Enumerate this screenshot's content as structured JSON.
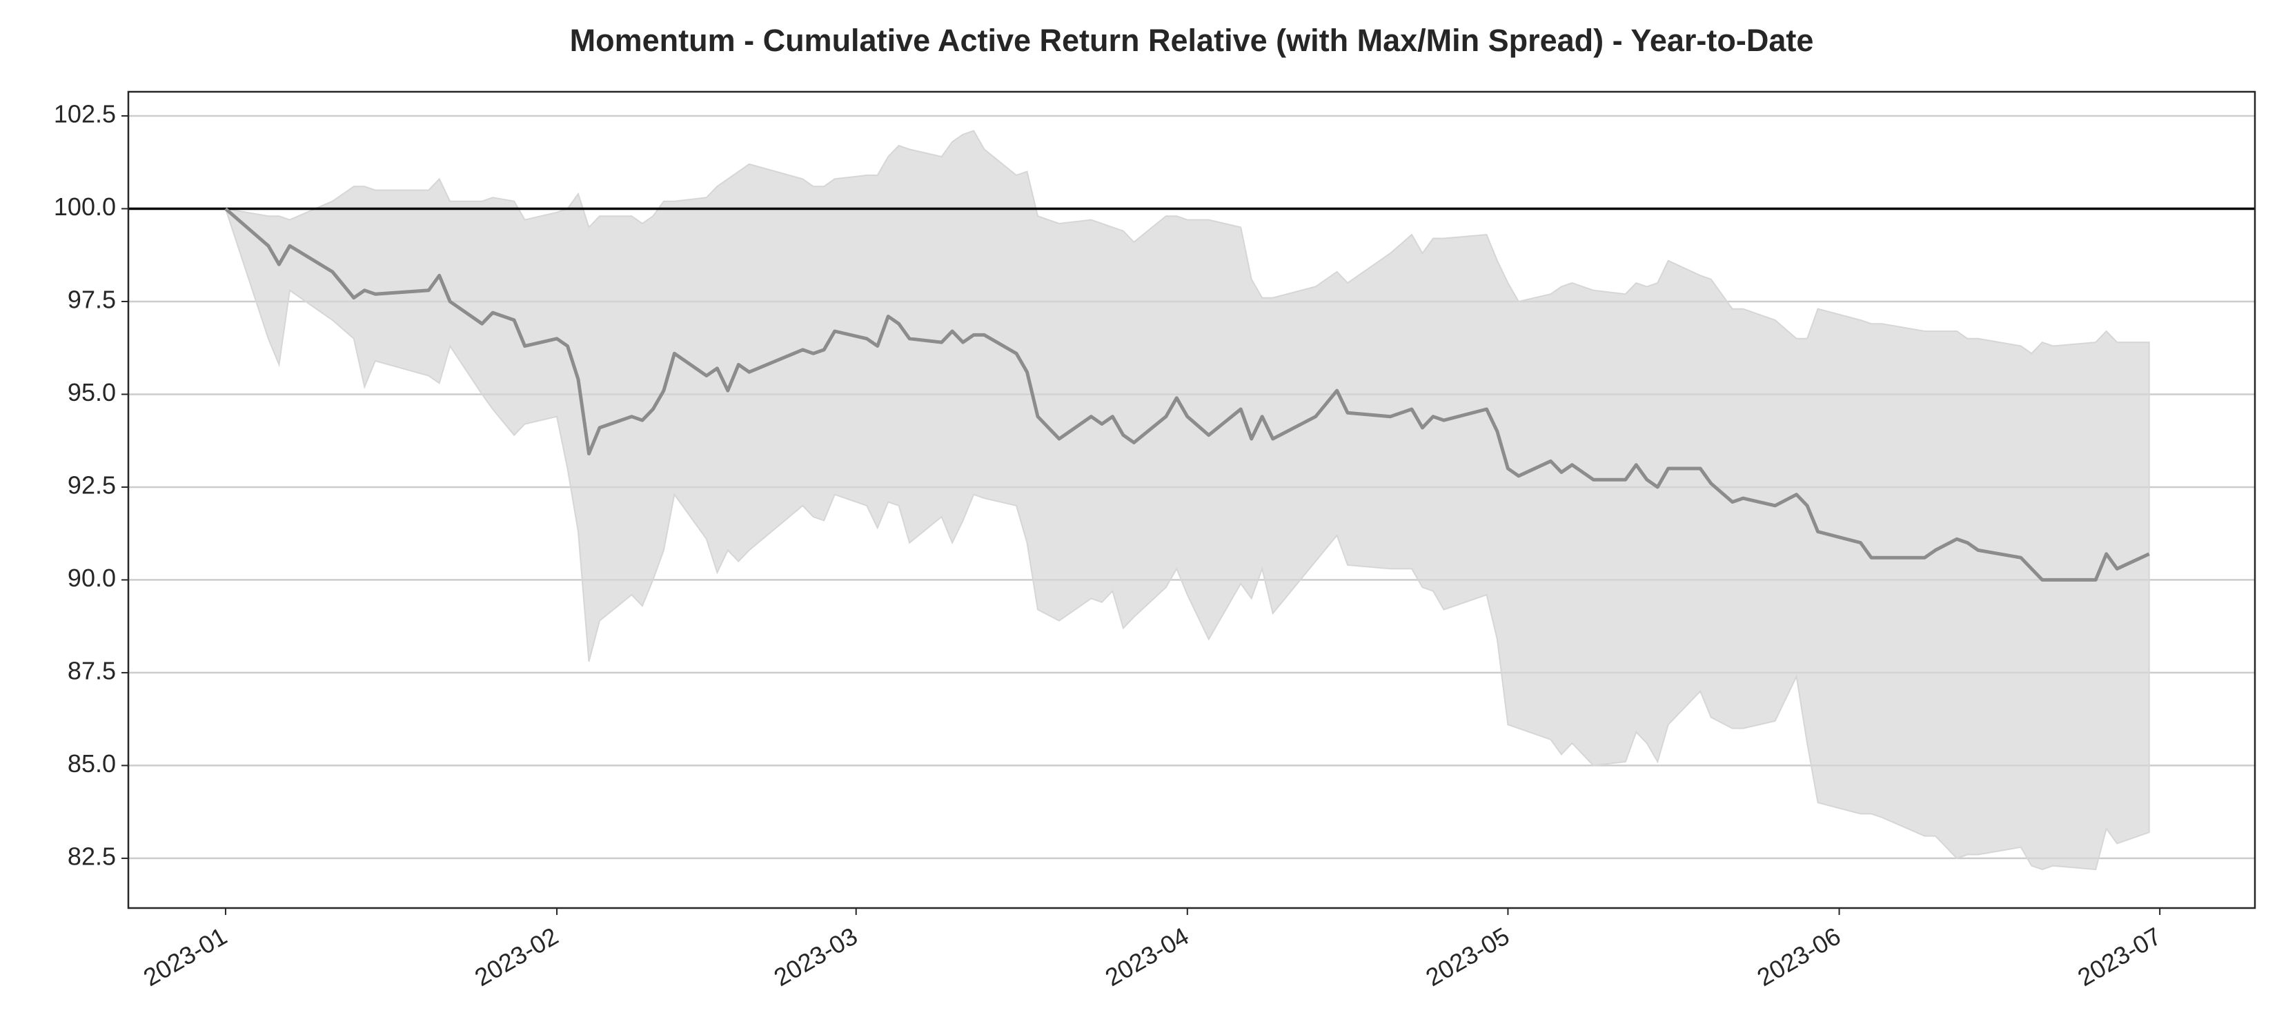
{
  "chart_data": {
    "type": "line",
    "title": "Momentum - Cumulative Active Return Relative (with Max/Min Spread) - Year-to-Date",
    "x": [
      0,
      4,
      5,
      6,
      10,
      12,
      13,
      14,
      19,
      20,
      21,
      24,
      25,
      27,
      28,
      31,
      32,
      33,
      34,
      35,
      38,
      39,
      40,
      41,
      42,
      45,
      46,
      47,
      48,
      49,
      54,
      55,
      56,
      57,
      60,
      61,
      62,
      63,
      64,
      67,
      68,
      69,
      70,
      71,
      74,
      75,
      76,
      78,
      81,
      82,
      83,
      84,
      85,
      88,
      89,
      90,
      92,
      95,
      96,
      97,
      98,
      102,
      104,
      105,
      109,
      111,
      112,
      113,
      114,
      118,
      119,
      120,
      121,
      124,
      125,
      126,
      128,
      131,
      132,
      133,
      134,
      135,
      138,
      139,
      141,
      142,
      145,
      147,
      148,
      149,
      153,
      154,
      155,
      159,
      160,
      162,
      163,
      164,
      168,
      169,
      170,
      171,
      175,
      176,
      177,
      180
    ],
    "series": [
      {
        "color": "#8c8c8c",
        "values": [
          100,
          99.0,
          98.5,
          99.0,
          98.3,
          97.6,
          97.8,
          97.7,
          97.8,
          98.2,
          97.5,
          96.9,
          97.2,
          97.0,
          96.3,
          96.5,
          96.3,
          95.4,
          93.4,
          94.1,
          94.4,
          94.3,
          94.6,
          95.1,
          96.1,
          95.5,
          95.7,
          95.1,
          95.8,
          95.6,
          96.2,
          96.1,
          96.2,
          96.7,
          96.5,
          96.3,
          97.1,
          96.9,
          96.5,
          96.4,
          96.7,
          96.4,
          96.6,
          96.6,
          96.1,
          95.6,
          94.4,
          93.8,
          94.4,
          94.2,
          94.4,
          93.9,
          93.7,
          94.4,
          94.9,
          94.4,
          93.9,
          94.6,
          93.8,
          94.4,
          93.8,
          94.4,
          95.1,
          94.5,
          94.4,
          94.6,
          94.1,
          94.4,
          94.3,
          94.6,
          94.0,
          93.0,
          92.8,
          93.2,
          92.9,
          93.1,
          92.7,
          92.7,
          93.1,
          92.7,
          92.5,
          93.0,
          93.0,
          92.6,
          92.1,
          92.2,
          92.0,
          92.3,
          92.0,
          91.3,
          91.0,
          90.6,
          90.6,
          90.6,
          90.8,
          91.1,
          91.0,
          90.8,
          90.6,
          90.3,
          90.0,
          90.0,
          90.0,
          90.7,
          90.3,
          90.7
        ]
      }
    ],
    "band": {
      "color": "#d6d6d6",
      "upper": [
        100,
        99.8,
        99.8,
        99.7,
        100.2,
        100.6,
        100.6,
        100.5,
        100.5,
        100.8,
        100.2,
        100.2,
        100.3,
        100.2,
        99.7,
        99.9,
        100.0,
        100.4,
        99.5,
        99.8,
        99.8,
        99.6,
        99.8,
        100.2,
        100.2,
        100.3,
        100.6,
        100.8,
        101.0,
        101.2,
        100.8,
        100.6,
        100.6,
        100.8,
        100.9,
        100.9,
        101.4,
        101.7,
        101.6,
        101.4,
        101.8,
        102.0,
        102.1,
        101.6,
        100.9,
        101.0,
        99.8,
        99.6,
        99.7,
        99.6,
        99.5,
        99.4,
        99.1,
        99.8,
        99.8,
        99.7,
        99.7,
        99.5,
        98.1,
        97.6,
        97.6,
        97.9,
        98.3,
        98.0,
        98.8,
        99.3,
        98.8,
        99.2,
        99.2,
        99.3,
        98.6,
        98.0,
        97.5,
        97.7,
        97.9,
        98.0,
        97.8,
        97.7,
        98.0,
        97.9,
        98.0,
        98.6,
        98.2,
        98.1,
        97.3,
        97.3,
        97.0,
        96.5,
        96.5,
        97.3,
        97.0,
        96.9,
        96.9,
        96.7,
        96.7,
        96.7,
        96.5,
        96.5,
        96.3,
        96.1,
        96.4,
        96.3,
        96.4,
        96.7,
        96.4,
        96.4
      ],
      "lower": [
        100,
        96.5,
        95.8,
        97.8,
        97.0,
        96.5,
        95.2,
        95.9,
        95.5,
        95.3,
        96.3,
        95.0,
        94.6,
        93.9,
        94.2,
        94.4,
        93.0,
        91.3,
        87.8,
        88.9,
        89.6,
        89.3,
        90.0,
        90.8,
        92.3,
        91.1,
        90.2,
        90.8,
        90.5,
        90.8,
        92.0,
        91.7,
        91.6,
        92.3,
        92.0,
        91.4,
        92.1,
        92.0,
        91.0,
        91.7,
        91.0,
        91.6,
        92.3,
        92.2,
        92.0,
        91.0,
        89.2,
        88.9,
        89.5,
        89.4,
        89.7,
        88.7,
        89.0,
        89.8,
        90.3,
        89.6,
        88.4,
        89.9,
        89.5,
        90.3,
        89.1,
        90.5,
        91.2,
        90.4,
        90.3,
        90.3,
        89.8,
        89.7,
        89.2,
        89.6,
        88.4,
        86.1,
        86.0,
        85.7,
        85.3,
        85.6,
        85.0,
        85.1,
        85.9,
        85.6,
        85.1,
        86.1,
        87.0,
        86.3,
        86.0,
        86.0,
        86.2,
        87.4,
        85.6,
        84.0,
        83.7,
        83.7,
        83.6,
        83.1,
        83.1,
        82.5,
        82.6,
        82.6,
        82.8,
        82.3,
        82.2,
        82.3,
        82.2,
        83.3,
        82.9,
        83.2
      ]
    },
    "hline": 100,
    "hline_color": "#000000",
    "xlim": [
      -9.1,
      189.9
    ],
    "xticks": [
      {
        "value": 0,
        "label": "2023-01"
      },
      {
        "value": 31,
        "label": "2023-02"
      },
      {
        "value": 59,
        "label": "2023-03"
      },
      {
        "value": 90,
        "label": "2023-04"
      },
      {
        "value": 120,
        "label": "2023-05"
      },
      {
        "value": 151,
        "label": "2023-06"
      },
      {
        "value": 181,
        "label": "2023-07"
      }
    ],
    "ylim": [
      81.16,
      103.15
    ],
    "yticks": [
      82.5,
      {
        "value": 85,
        "label": "85.0"
      },
      87.5,
      {
        "value": 90,
        "label": "90.0"
      },
      92.5,
      {
        "value": 95,
        "label": "95.0"
      },
      97.5,
      {
        "value": 100,
        "label": "100.0"
      },
      102.5
    ],
    "grid": true
  }
}
